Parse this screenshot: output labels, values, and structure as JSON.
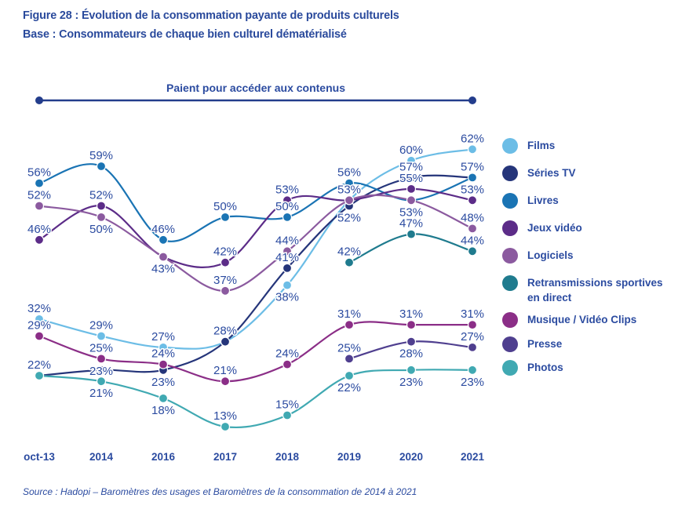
{
  "figure": {
    "title": "Figure 28 : Évolution de la consommation payante de produits culturels",
    "subtitle": "Base : Consommateurs de chaque bien culturel dématérialisé",
    "source": "Source : Hadopi – Baromètres des usages et Baromètres de la consommation de 2014 à 2021"
  },
  "chart_data": {
    "type": "line",
    "title": "Évolution de la consommation payante de produits culturels",
    "annotation": "Paient pour accéder aux contenus",
    "xlabel": "",
    "ylabel": "",
    "categories": [
      "oct-13",
      "2014",
      "2016",
      "2017",
      "2018",
      "2019",
      "2020",
      "2021"
    ],
    "value_suffix": "%",
    "grid": false,
    "legend": "right",
    "series": [
      {
        "name": "Films",
        "color": "#6cbde6",
        "values": [
          32,
          29,
          27,
          28,
          38,
          53,
          60,
          62
        ]
      },
      {
        "name": "Séries TV",
        "color": "#25357a",
        "values": [
          22,
          23,
          23,
          28,
          41,
          52,
          57,
          57
        ]
      },
      {
        "name": "Livres",
        "color": "#1a74b4",
        "values": [
          56,
          59,
          46,
          50,
          50,
          56,
          53,
          57
        ]
      },
      {
        "name": "Jeux vidéo",
        "color": "#5c2c88",
        "values": [
          46,
          52,
          43,
          42,
          53,
          53,
          55,
          53
        ]
      },
      {
        "name": "Logiciels",
        "color": "#8b5a9f",
        "values": [
          52,
          50,
          43,
          37,
          44,
          53,
          53,
          48
        ]
      },
      {
        "name": "Retransmissions sportives en direct",
        "color": "#1f7b8e",
        "values": [
          null,
          null,
          null,
          null,
          null,
          42,
          47,
          44
        ]
      },
      {
        "name": "Musique / Vidéo Clips",
        "color": "#8b2e87",
        "values": [
          29,
          25,
          24,
          21,
          24,
          31,
          31,
          31
        ]
      },
      {
        "name": "Presse",
        "color": "#4f3f8f",
        "values": [
          null,
          null,
          null,
          null,
          null,
          25,
          28,
          27
        ]
      },
      {
        "name": "Photos",
        "color": "#40a9b2",
        "values": [
          22,
          21,
          18,
          13,
          15,
          22,
          23,
          23
        ]
      }
    ]
  }
}
